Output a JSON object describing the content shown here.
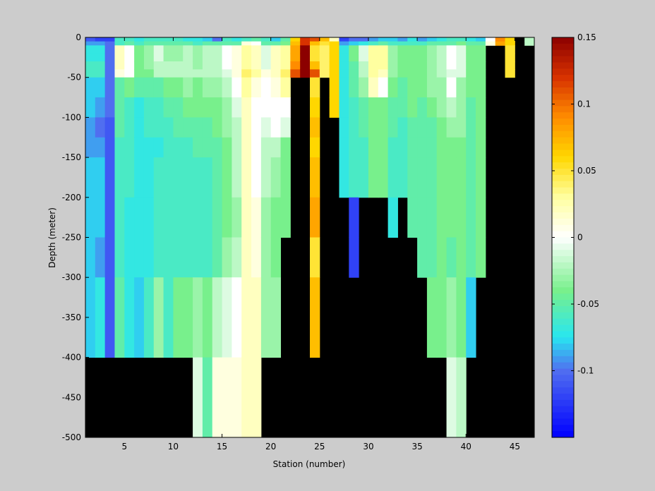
{
  "chart_data": {
    "type": "heatmap",
    "title": "",
    "xlabel": "Station (number)",
    "ylabel": "Depth (meter)",
    "xlim": [
      1,
      47
    ],
    "ylim": [
      -500,
      0
    ],
    "x_ticks": [
      5,
      10,
      15,
      20,
      25,
      30,
      35,
      40,
      45
    ],
    "y_ticks": [
      0,
      -50,
      -100,
      -150,
      -200,
      -250,
      -300,
      -350,
      -400,
      -450,
      -500
    ],
    "x_tick_labels": [
      "5",
      "10",
      "15",
      "20",
      "25",
      "30",
      "35",
      "40",
      "45"
    ],
    "y_tick_labels": [
      "0",
      "-50",
      "-100",
      "-150",
      "-200",
      "-250",
      "-300",
      "-350",
      "-400",
      "-450",
      "-500"
    ],
    "depth_bins": [
      0,
      5,
      10,
      20,
      30,
      40,
      50,
      75,
      100,
      125,
      150,
      200,
      250,
      300,
      400,
      500
    ],
    "colorbar": {
      "clim": [
        -0.15,
        0.15
      ],
      "ticks": [
        0.15,
        0.1,
        0.05,
        0,
        -0.05,
        -0.1
      ],
      "tick_labels": [
        "0.15",
        "0.1",
        "0.05",
        "0",
        "-0.05",
        "-0.1"
      ],
      "colormap": "jet-like (blue–cyan–green–white–yellow–orange–dark red)"
    },
    "nodata_color": "#000000",
    "grid": false,
    "rows_note": "rows: stations 1..46; each row = values per depth bin (top→bottom); null = no data (black)",
    "values": [
      [
        -0.11,
        -0.09,
        -0.07,
        -0.07,
        -0.06,
        -0.06,
        -0.08,
        -0.08,
        -0.09,
        -0.09,
        -0.08,
        -0.08,
        -0.08,
        -0.08,
        null
      ],
      [
        -0.12,
        -0.09,
        -0.07,
        -0.07,
        -0.06,
        -0.06,
        -0.08,
        -0.09,
        -0.1,
        -0.09,
        -0.08,
        -0.08,
        -0.09,
        -0.07,
        null
      ],
      [
        -0.12,
        -0.1,
        -0.1,
        -0.1,
        -0.1,
        -0.1,
        -0.1,
        -0.1,
        -0.11,
        -0.11,
        -0.11,
        -0.11,
        -0.11,
        -0.11,
        null
      ],
      [
        -0.06,
        -0.06,
        0.02,
        0.02,
        0.02,
        0.01,
        -0.05,
        -0.05,
        -0.05,
        -0.06,
        -0.06,
        -0.06,
        -0.06,
        -0.05,
        null
      ],
      [
        -0.06,
        -0.05,
        0.0,
        0.0,
        0.0,
        0.0,
        -0.04,
        -0.06,
        -0.06,
        -0.06,
        -0.06,
        -0.07,
        -0.07,
        -0.07,
        null
      ],
      [
        -0.07,
        -0.06,
        -0.04,
        -0.04,
        -0.04,
        -0.04,
        -0.05,
        -0.07,
        -0.07,
        -0.07,
        -0.07,
        -0.07,
        -0.07,
        -0.08,
        null
      ],
      [
        -0.06,
        -0.05,
        -0.03,
        -0.03,
        -0.03,
        -0.04,
        -0.05,
        -0.06,
        -0.06,
        -0.07,
        -0.07,
        -0.07,
        -0.07,
        -0.06,
        null
      ],
      [
        -0.06,
        -0.05,
        -0.01,
        -0.01,
        -0.02,
        -0.02,
        -0.05,
        -0.06,
        -0.06,
        -0.07,
        -0.06,
        -0.06,
        -0.06,
        -0.03,
        null
      ],
      [
        -0.06,
        -0.05,
        -0.03,
        -0.03,
        -0.02,
        -0.02,
        -0.04,
        -0.05,
        -0.06,
        -0.06,
        -0.06,
        -0.06,
        -0.06,
        -0.06,
        null
      ],
      [
        -0.06,
        -0.05,
        -0.03,
        -0.03,
        -0.02,
        -0.02,
        -0.04,
        -0.05,
        -0.05,
        -0.06,
        -0.06,
        -0.06,
        -0.06,
        -0.04,
        null
      ],
      [
        -0.07,
        -0.05,
        -0.02,
        -0.02,
        -0.02,
        -0.02,
        -0.03,
        -0.04,
        -0.05,
        -0.06,
        -0.06,
        -0.06,
        -0.06,
        -0.04,
        null
      ],
      [
        -0.07,
        -0.06,
        -0.03,
        -0.03,
        -0.03,
        -0.02,
        -0.04,
        -0.04,
        -0.05,
        -0.05,
        -0.06,
        -0.06,
        -0.06,
        -0.03,
        -0.01
      ],
      [
        -0.08,
        -0.05,
        -0.02,
        -0.02,
        -0.02,
        -0.02,
        -0.03,
        -0.04,
        -0.05,
        -0.05,
        -0.06,
        -0.06,
        -0.06,
        -0.04,
        -0.05
      ],
      [
        -0.1,
        -0.05,
        -0.02,
        -0.02,
        -0.02,
        -0.02,
        -0.03,
        -0.04,
        -0.04,
        -0.05,
        -0.05,
        -0.05,
        -0.05,
        -0.02,
        0.01
      ],
      [
        -0.06,
        -0.05,
        0.0,
        0.0,
        0.0,
        -0.01,
        -0.02,
        -0.03,
        -0.03,
        -0.04,
        -0.04,
        -0.04,
        -0.03,
        -0.01,
        0.01
      ],
      [
        -0.07,
        -0.05,
        0.01,
        0.01,
        0.01,
        0.01,
        0.0,
        -0.01,
        -0.02,
        -0.02,
        -0.02,
        -0.03,
        -0.02,
        0.0,
        0.01
      ],
      [
        -0.06,
        0.01,
        0.03,
        0.03,
        0.03,
        0.04,
        0.03,
        0.02,
        0.02,
        0.02,
        0.02,
        0.02,
        0.02,
        0.02,
        0.02
      ],
      [
        -0.05,
        0.0,
        0.02,
        0.02,
        0.02,
        0.03,
        0.01,
        0.0,
        0.0,
        0.0,
        0.0,
        0.01,
        0.01,
        0.02,
        0.02
      ],
      [
        -0.06,
        -0.05,
        -0.01,
        -0.01,
        -0.01,
        0.01,
        0.0,
        0.0,
        -0.01,
        -0.02,
        -0.02,
        -0.03,
        -0.03,
        -0.03,
        null
      ],
      [
        -0.08,
        -0.05,
        0.02,
        0.02,
        0.02,
        0.02,
        0.01,
        0.0,
        0.0,
        -0.02,
        -0.03,
        -0.04,
        -0.04,
        -0.03,
        null
      ],
      [
        -0.05,
        -0.04,
        0.03,
        0.03,
        0.03,
        0.04,
        0.03,
        0.0,
        -0.01,
        -0.04,
        -0.04,
        -0.04,
        null,
        null,
        null
      ],
      [
        0.06,
        0.07,
        0.08,
        0.08,
        0.09,
        0.11,
        null,
        null,
        null,
        null,
        null,
        null,
        null,
        null,
        null
      ],
      [
        0.12,
        0.12,
        0.15,
        0.15,
        0.15,
        0.15,
        null,
        null,
        null,
        null,
        null,
        null,
        null,
        null,
        null
      ],
      [
        0.11,
        0.07,
        0.05,
        0.05,
        0.07,
        0.11,
        0.05,
        0.06,
        0.07,
        0.06,
        0.07,
        0.08,
        0.05,
        0.07,
        null
      ],
      [
        0.07,
        0.05,
        0.04,
        0.04,
        0.04,
        0.04,
        null,
        null,
        null,
        null,
        null,
        null,
        null,
        null,
        null
      ],
      [
        0.02,
        0.06,
        0.06,
        0.06,
        0.06,
        0.06,
        0.06,
        0.06,
        null,
        null,
        null,
        null,
        null,
        null,
        null
      ],
      [
        -0.12,
        -0.09,
        -0.07,
        -0.07,
        -0.07,
        -0.07,
        -0.07,
        -0.07,
        -0.07,
        -0.07,
        -0.07,
        null,
        null,
        null,
        null
      ],
      [
        -0.1,
        -0.08,
        -0.04,
        -0.04,
        -0.05,
        -0.05,
        -0.05,
        -0.06,
        -0.06,
        -0.06,
        -0.06,
        -0.12,
        -0.12,
        null,
        null
      ],
      [
        -0.1,
        -0.07,
        -0.01,
        -0.01,
        -0.02,
        -0.02,
        -0.03,
        -0.05,
        -0.05,
        -0.06,
        -0.06,
        null,
        null,
        null,
        null
      ],
      [
        -0.09,
        -0.06,
        0.03,
        0.03,
        0.03,
        0.03,
        0.02,
        -0.04,
        -0.04,
        -0.04,
        -0.04,
        null,
        null,
        null,
        null
      ],
      [
        -0.08,
        -0.05,
        0.03,
        0.03,
        0.03,
        0.02,
        0.0,
        -0.04,
        -0.04,
        -0.04,
        -0.04,
        null,
        null,
        null,
        null
      ],
      [
        -0.08,
        -0.06,
        -0.03,
        -0.03,
        -0.03,
        -0.03,
        -0.04,
        -0.05,
        -0.05,
        -0.06,
        -0.06,
        -0.07,
        null,
        null,
        null
      ],
      [
        -0.09,
        -0.06,
        -0.04,
        -0.04,
        -0.04,
        -0.04,
        -0.05,
        -0.05,
        -0.06,
        -0.06,
        -0.06,
        null,
        null,
        null,
        null
      ],
      [
        -0.07,
        -0.06,
        -0.04,
        -0.04,
        -0.04,
        -0.04,
        -0.04,
        -0.04,
        -0.05,
        -0.05,
        -0.05,
        -0.05,
        null,
        null,
        null
      ],
      [
        -0.09,
        -0.06,
        -0.04,
        -0.04,
        -0.04,
        -0.04,
        -0.04,
        -0.05,
        -0.05,
        -0.05,
        -0.05,
        -0.05,
        -0.05,
        null,
        null
      ],
      [
        -0.08,
        -0.05,
        -0.03,
        -0.03,
        -0.03,
        -0.03,
        -0.03,
        -0.04,
        -0.05,
        -0.05,
        -0.05,
        -0.05,
        -0.05,
        -0.04,
        null
      ],
      [
        -0.07,
        -0.05,
        -0.02,
        -0.02,
        -0.02,
        -0.02,
        -0.03,
        -0.03,
        -0.04,
        -0.04,
        -0.04,
        -0.04,
        -0.04,
        -0.04,
        null
      ],
      [
        -0.06,
        -0.05,
        0.0,
        0.0,
        0.0,
        -0.01,
        0.0,
        -0.02,
        -0.03,
        -0.04,
        -0.04,
        -0.04,
        -0.05,
        -0.03,
        -0.01
      ],
      [
        -0.06,
        -0.04,
        -0.01,
        -0.01,
        -0.01,
        -0.01,
        -0.03,
        -0.03,
        -0.03,
        -0.04,
        -0.04,
        -0.04,
        -0.04,
        -0.04,
        -0.02
      ],
      [
        -0.07,
        -0.05,
        -0.04,
        -0.04,
        -0.04,
        -0.04,
        -0.04,
        -0.05,
        -0.05,
        -0.05,
        -0.05,
        -0.05,
        -0.05,
        -0.08,
        null
      ],
      [
        -0.08,
        -0.05,
        -0.04,
        -0.04,
        -0.04,
        -0.04,
        -0.04,
        -0.04,
        -0.04,
        -0.04,
        -0.04,
        -0.04,
        -0.04,
        null,
        null
      ],
      [
        0.0,
        0.01,
        null,
        null,
        null,
        null,
        null,
        null,
        null,
        null,
        null,
        null,
        null,
        null,
        null
      ],
      [
        0.09,
        0.08,
        null,
        null,
        null,
        null,
        null,
        null,
        null,
        null,
        null,
        null,
        null,
        null,
        null
      ],
      [
        0.06,
        0.06,
        0.05,
        0.05,
        0.05,
        0.05,
        null,
        null,
        null,
        null,
        null,
        null,
        null,
        null,
        null
      ],
      [
        null,
        null,
        null,
        null,
        null,
        null,
        null,
        null,
        null,
        null,
        null,
        null,
        null,
        null,
        null
      ],
      [
        -0.02,
        -0.02,
        null,
        null,
        null,
        null,
        null,
        null,
        null,
        null,
        null,
        null,
        null,
        null,
        null
      ]
    ]
  }
}
